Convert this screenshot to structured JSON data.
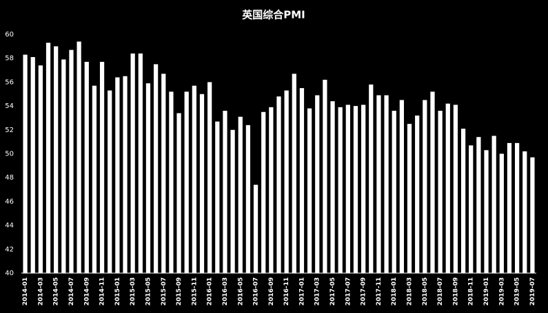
{
  "chart_data": {
    "type": "bar",
    "title": "英国综合PMI",
    "categories": [
      "2014-01",
      null,
      "2014-03",
      null,
      "2014-05",
      null,
      "2014-07",
      null,
      "2014-09",
      null,
      "2014-11",
      null,
      "2015-01",
      null,
      "2015-03",
      null,
      "2015-05",
      null,
      "2015-07",
      null,
      "2015-09",
      null,
      "2015-11",
      null,
      "2016-01",
      null,
      "2016-03",
      null,
      "2016-05",
      null,
      "2016-07",
      null,
      "2016-09",
      null,
      "2016-11",
      null,
      "2017-01",
      null,
      "2017-03",
      null,
      "2017-05",
      null,
      "2017-07",
      null,
      "2017-09",
      null,
      "2017-11",
      null,
      "2018-01",
      null,
      "2018-03",
      null,
      "2018-05",
      null,
      "2018-07",
      null,
      "2018-09",
      null,
      "2018-11",
      null,
      "2019-01",
      null,
      "2019-03",
      null,
      "2019-05",
      null,
      "2019-07"
    ],
    "values": [
      58.3,
      58.1,
      57.4,
      59.3,
      59.0,
      57.9,
      58.7,
      59.4,
      57.7,
      55.7,
      57.7,
      55.3,
      56.4,
      56.5,
      58.4,
      58.4,
      55.9,
      57.5,
      56.7,
      55.2,
      53.4,
      55.2,
      55.7,
      55.0,
      56.0,
      52.7,
      53.6,
      52.0,
      53.1,
      52.4,
      47.4,
      53.5,
      53.9,
      54.8,
      55.3,
      56.7,
      55.5,
      53.8,
      54.9,
      56.2,
      54.4,
      53.9,
      54.1,
      54.0,
      54.1,
      55.8,
      54.9,
      54.9,
      53.6,
      54.5,
      52.5,
      53.2,
      54.5,
      55.2,
      53.6,
      54.2,
      54.1,
      52.1,
      50.7,
      51.4,
      50.3,
      51.5,
      50.0,
      50.9,
      50.9,
      50.2,
      49.7
    ],
    "color": "#ffffff",
    "ylim": [
      40,
      60
    ],
    "yticks": [
      40,
      42,
      44,
      46,
      48,
      50,
      52,
      54,
      56,
      58,
      60
    ],
    "grid": false
  }
}
